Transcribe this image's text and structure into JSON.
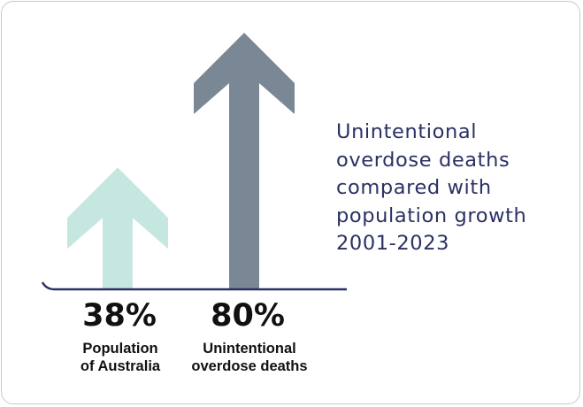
{
  "chart_data": {
    "type": "bar",
    "title_lines": [
      "Unintentional",
      "overdose deaths",
      "compared with",
      "population growth",
      "2001-2023"
    ],
    "categories": [
      {
        "label_lines": [
          "Population",
          "of Australia"
        ]
      },
      {
        "label_lines": [
          "Unintentional",
          "overdose deaths"
        ]
      }
    ],
    "values": [
      38,
      80
    ],
    "value_labels": [
      "38%",
      "80%"
    ],
    "unit": "%",
    "ylim": [
      0,
      80
    ],
    "colors": [
      "#c6e6e0",
      "#7a8896"
    ],
    "baseline_color": "#2a3163",
    "grid": false,
    "legend": "none"
  }
}
